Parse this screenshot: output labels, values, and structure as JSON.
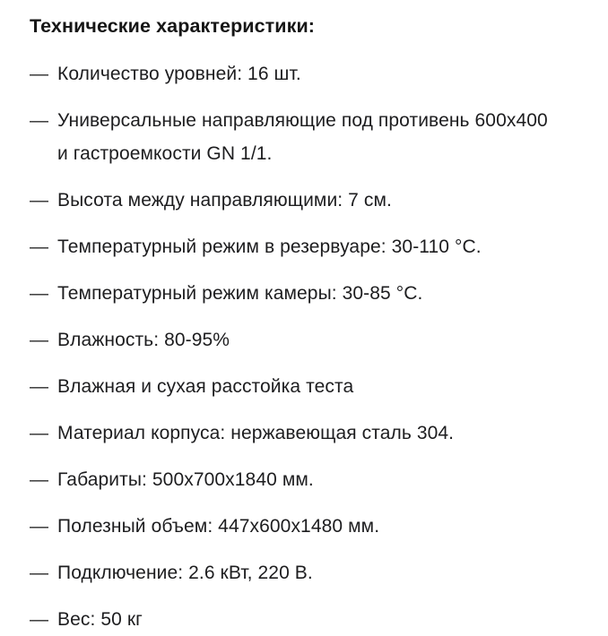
{
  "page": {
    "title": "Технические характеристики:",
    "marker": "—",
    "colors": {
      "background": "#ffffff",
      "text": "#1d1d1f",
      "title": "#161616"
    },
    "items": [
      "Количество уровней: 16 шт.",
      "Универсальные направляющие под противень 600х400 и гастроемкости GN 1/1.",
      "Высота между направляющими: 7 см.",
      "Температурный режим в резервуаре: 30-110 °С.",
      "Температурный режим камеры: 30-85 °С.",
      "Влажность: 80-95%",
      "Влажная и сухая расстойка теста",
      "Материал корпуса: нержавеющая сталь 304.",
      "Габариты: 500х700х1840 мм.",
      "Полезный объем: 447х600х1480 мм.",
      "Подключение: 2.6 кВт, 220 В.",
      "Вес: 50 кг"
    ]
  }
}
